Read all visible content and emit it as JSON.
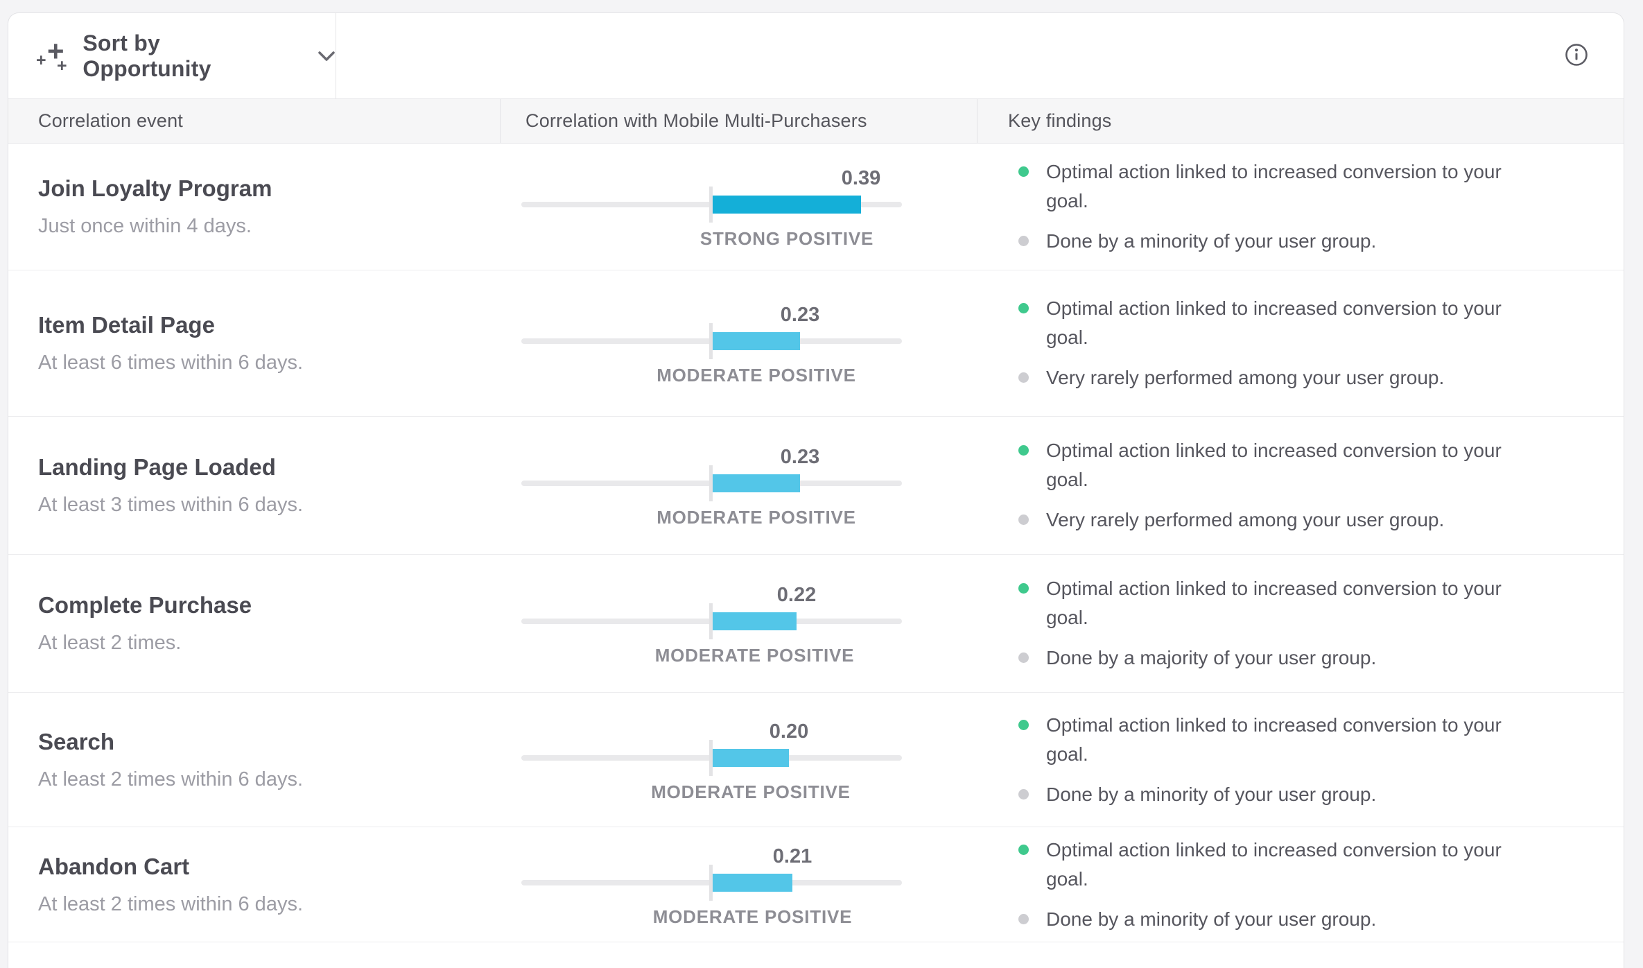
{
  "toolbar": {
    "sort_label": "Sort by Opportunity"
  },
  "icons": {
    "sort": "plus-sparkles-icon",
    "dropdown": "chevron-down-icon",
    "info": "info-circle-icon"
  },
  "header": {
    "columns": [
      "Correlation event",
      "Correlation with Mobile Multi-Purchasers",
      "Key findings"
    ]
  },
  "bar_scale": {
    "min": -0.5,
    "max": 0.5
  },
  "colors": {
    "strong_positive_bar": "#14afd8",
    "moderate_positive_bar": "#53c6e8",
    "positive_finding_bullet": "#3fc98d",
    "neutral_finding_bullet": "#cdcdd1"
  },
  "rows": [
    {
      "title": "Join Loyalty Program",
      "subtitle": "Just once within 4 days.",
      "value": "0.39",
      "value_num": 0.39,
      "strength": "STRONG POSITIVE",
      "strength_class": "strong",
      "findings": [
        {
          "color": "green",
          "text": "Optimal action linked to increased conversion to your goal."
        },
        {
          "color": "gray",
          "text": "Done by a minority of your user group."
        }
      ]
    },
    {
      "title": "Item Detail Page",
      "subtitle": "At least 6 times within 6 days.",
      "value": "0.23",
      "value_num": 0.23,
      "strength": "MODERATE POSITIVE",
      "strength_class": "moderate",
      "findings": [
        {
          "color": "green",
          "text": "Optimal action linked to increased conversion to your goal."
        },
        {
          "color": "gray",
          "text": "Very rarely performed among your user group."
        }
      ]
    },
    {
      "title": "Landing Page Loaded",
      "subtitle": "At least 3 times within 6 days.",
      "value": "0.23",
      "value_num": 0.23,
      "strength": "MODERATE POSITIVE",
      "strength_class": "moderate",
      "findings": [
        {
          "color": "green",
          "text": "Optimal action linked to increased conversion to your goal."
        },
        {
          "color": "gray",
          "text": "Very rarely performed among your user group."
        }
      ]
    },
    {
      "title": "Complete Purchase",
      "subtitle": "At least 2 times.",
      "value": "0.22",
      "value_num": 0.22,
      "strength": "MODERATE POSITIVE",
      "strength_class": "moderate",
      "findings": [
        {
          "color": "green",
          "text": "Optimal action linked to increased conversion to your goal."
        },
        {
          "color": "gray",
          "text": "Done by a majority of your user group."
        }
      ]
    },
    {
      "title": "Search",
      "subtitle": "At least 2 times within 6 days.",
      "value": "0.20",
      "value_num": 0.2,
      "strength": "MODERATE POSITIVE",
      "strength_class": "moderate",
      "findings": [
        {
          "color": "green",
          "text": "Optimal action linked to increased conversion to your goal."
        },
        {
          "color": "gray",
          "text": "Done by a minority of your user group."
        }
      ]
    },
    {
      "title": "Abandon Cart",
      "subtitle": "At least 2 times within 6 days.",
      "value": "0.21",
      "value_num": 0.21,
      "strength": "MODERATE POSITIVE",
      "strength_class": "moderate",
      "findings": [
        {
          "color": "green",
          "text": "Optimal action linked to increased conversion to your goal."
        },
        {
          "color": "gray",
          "text": "Done by a minority of your user group."
        }
      ]
    }
  ]
}
